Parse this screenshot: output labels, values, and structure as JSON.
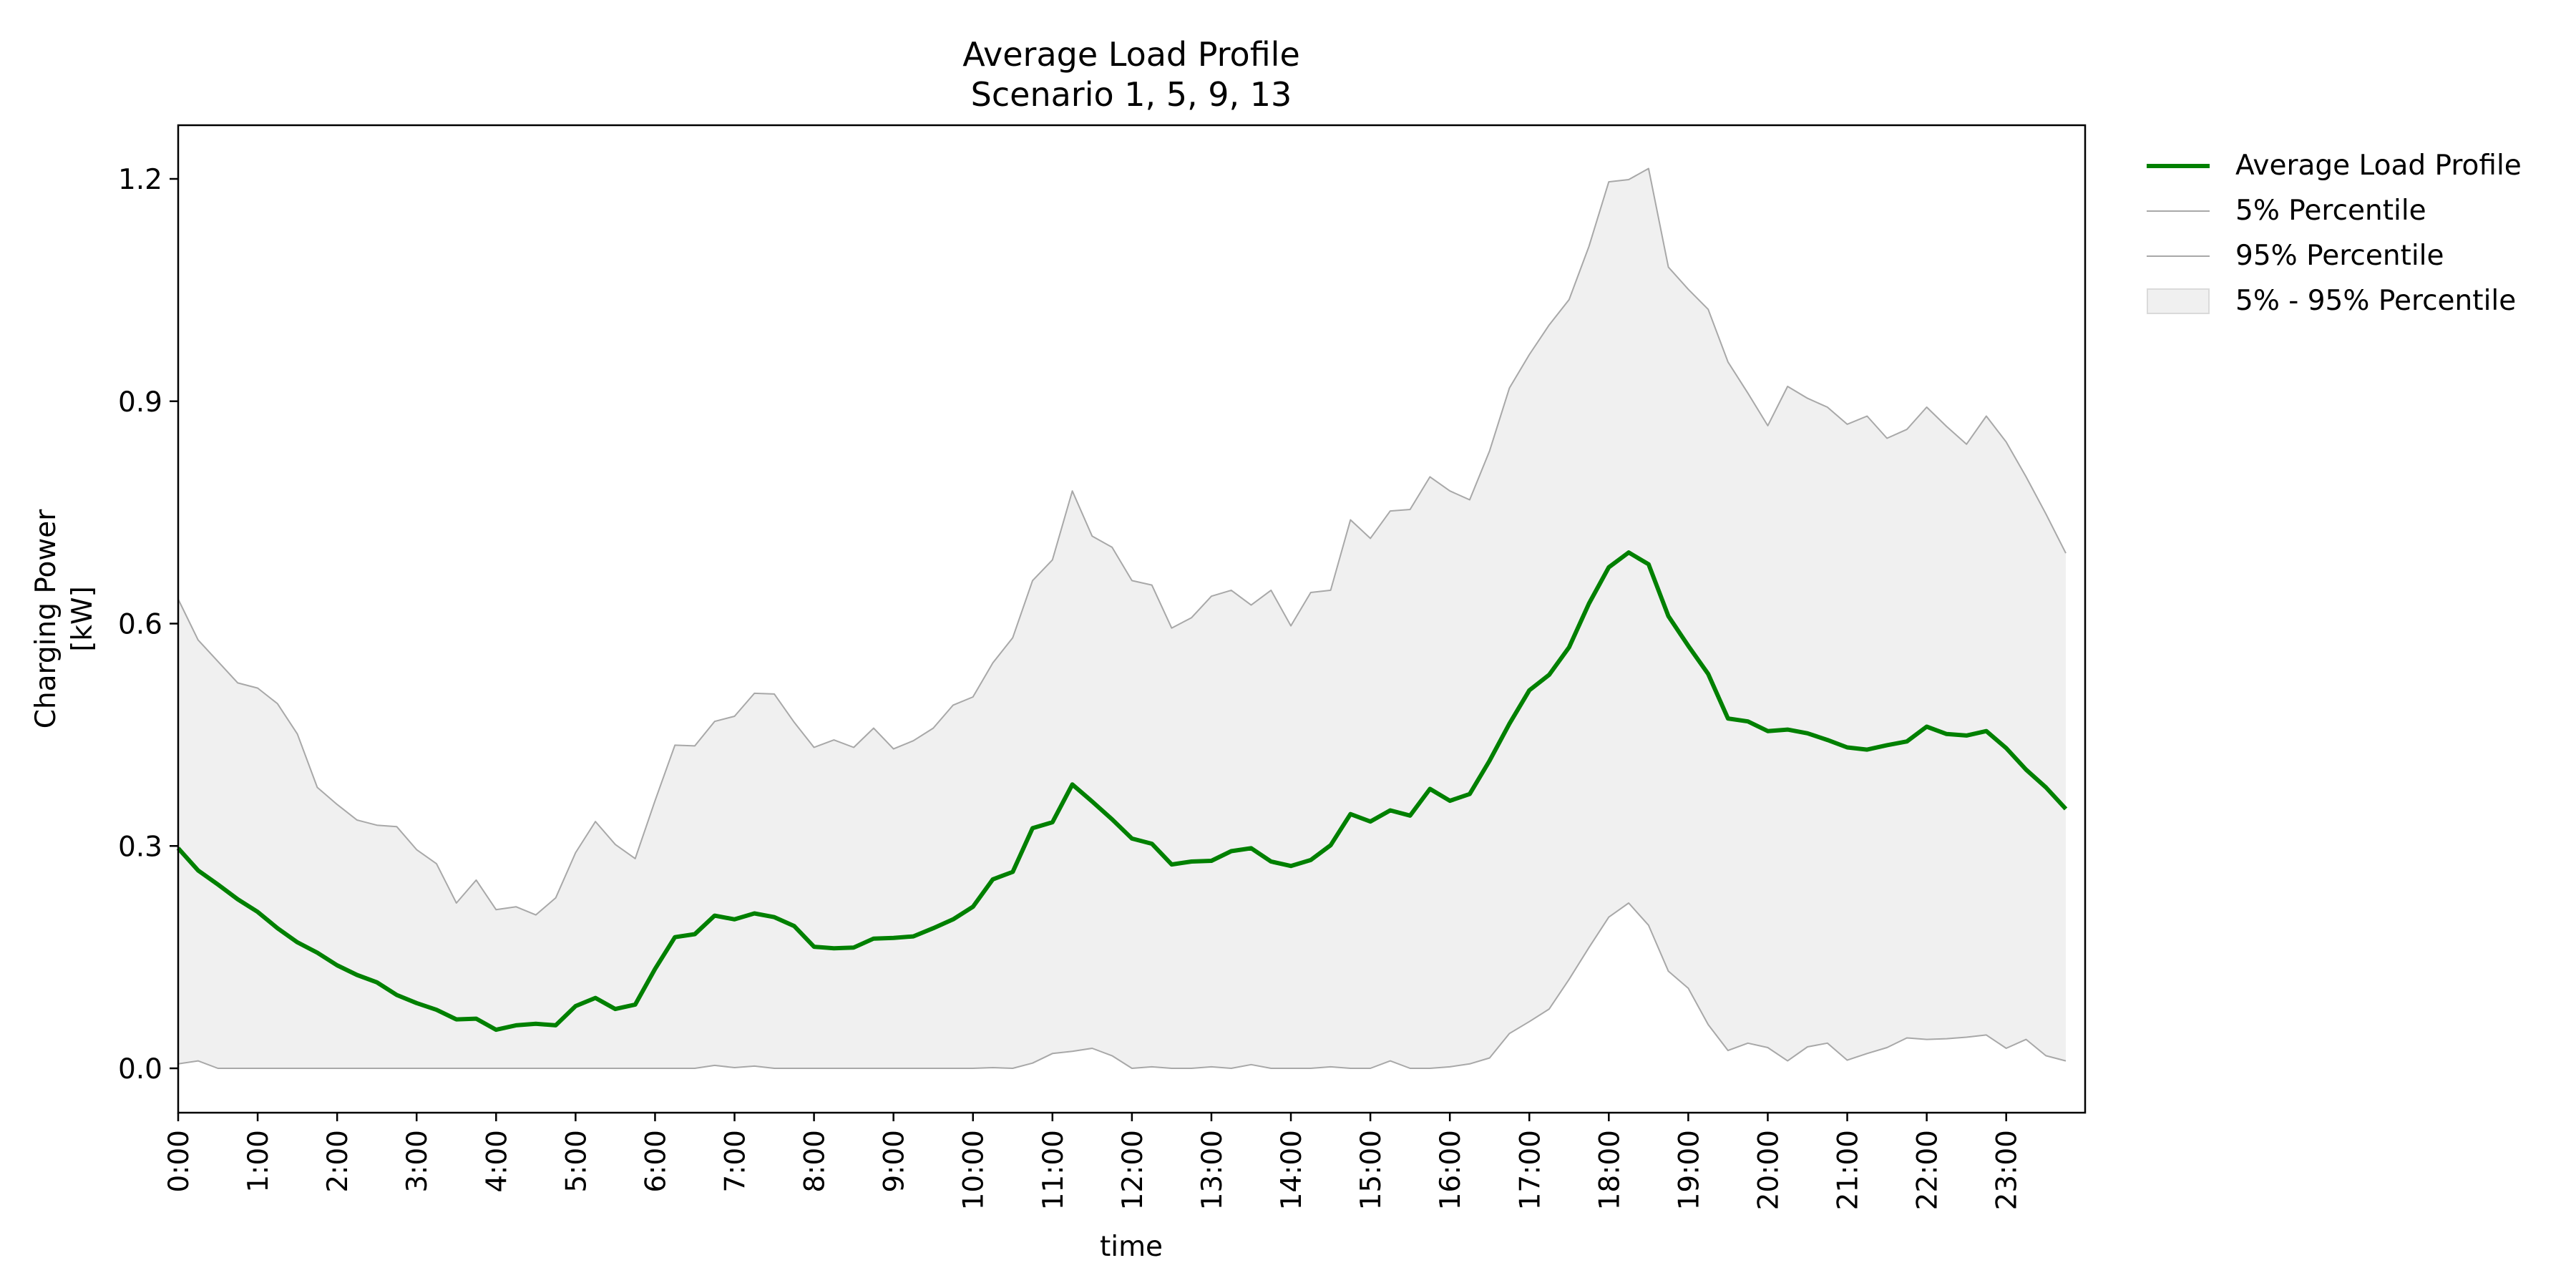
{
  "chart_data": {
    "type": "line",
    "title": "Average Load Profile",
    "subtitle": "Scenario 1, 5, 9, 13",
    "xlabel": "time",
    "ylabel": "Charging Power",
    "ylabel_unit": "[kW]",
    "ylim": [
      -0.06,
      1.27
    ],
    "yticks": [
      0.0,
      0.3,
      0.6,
      0.9,
      1.2
    ],
    "ytick_labels": [
      "0.0",
      "0.3",
      "0.6",
      "0.9",
      "1.2"
    ],
    "xlim": [
      0,
      23.75
    ],
    "xticks": [
      0,
      1,
      2,
      3,
      4,
      5,
      6,
      7,
      8,
      9,
      10,
      11,
      12,
      13,
      14,
      15,
      16,
      17,
      18,
      19,
      20,
      21,
      22,
      23
    ],
    "xtick_labels": [
      "0:00",
      "1:00",
      "2:00",
      "3:00",
      "4:00",
      "5:00",
      "6:00",
      "7:00",
      "8:00",
      "9:00",
      "10:00",
      "11:00",
      "12:00",
      "13:00",
      "14:00",
      "15:00",
      "16:00",
      "17:00",
      "18:00",
      "19:00",
      "20:00",
      "21:00",
      "22:00",
      "23:00"
    ],
    "grid": false,
    "legend_position": "outside-top-right",
    "x_interval_hours": 0.25,
    "x_start": "0:00",
    "series": [
      {
        "name": "Average Load Profile",
        "color": "#008000",
        "values": [
          0.297,
          0.267,
          0.248,
          0.228,
          0.211,
          0.189,
          0.17,
          0.156,
          0.139,
          0.126,
          0.116,
          0.099,
          0.088,
          0.079,
          0.066,
          0.067,
          0.052,
          0.058,
          0.06,
          0.058,
          0.084,
          0.095,
          0.08,
          0.086,
          0.134,
          0.177,
          0.181,
          0.206,
          0.201,
          0.209,
          0.204,
          0.192,
          0.164,
          0.162,
          0.163,
          0.175,
          0.176,
          0.178,
          0.189,
          0.201,
          0.218,
          0.255,
          0.265,
          0.324,
          0.332,
          0.383,
          0.36,
          0.336,
          0.31,
          0.303,
          0.275,
          0.279,
          0.28,
          0.293,
          0.297,
          0.279,
          0.273,
          0.281,
          0.301,
          0.343,
          0.333,
          0.348,
          0.341,
          0.377,
          0.361,
          0.37,
          0.415,
          0.465,
          0.51,
          0.531,
          0.568,
          0.627,
          0.676,
          0.696,
          0.68,
          0.61,
          0.57,
          0.532,
          0.472,
          0.468,
          0.455,
          0.457,
          0.452,
          0.443,
          0.433,
          0.43,
          0.436,
          0.441,
          0.461,
          0.451,
          0.449,
          0.455,
          0.432,
          0.403,
          0.379,
          0.35
        ]
      },
      {
        "name": "5% Percentile",
        "color": "#a8a8a8",
        "values": [
          0.006,
          0.01,
          0.0,
          0.0,
          0.0,
          0.0,
          0.0,
          0.0,
          0.0,
          0.0,
          0.0,
          0.0,
          0.0,
          0.0,
          0.0,
          0.0,
          0.0,
          0.0,
          0.0,
          0.0,
          0.0,
          0.0,
          0.0,
          0.0,
          0.0,
          0.0,
          0.0,
          0.004,
          0.001,
          0.003,
          0.0,
          0.0,
          0.0,
          0.0,
          0.0,
          0.0,
          0.0,
          0.0,
          0.0,
          0.0,
          0.0,
          0.001,
          0.0,
          0.007,
          0.02,
          0.023,
          0.027,
          0.017,
          0.0,
          0.002,
          0.0,
          0.0,
          0.002,
          0.0,
          0.005,
          0.0,
          0.0,
          0.0,
          0.002,
          0.0,
          0.0,
          0.01,
          0.0,
          0.0,
          0.002,
          0.006,
          0.014,
          0.047,
          0.063,
          0.08,
          0.12,
          0.163,
          0.204,
          0.223,
          0.193,
          0.131,
          0.108,
          0.059,
          0.024,
          0.034,
          0.028,
          0.01,
          0.029,
          0.034,
          0.011,
          0.02,
          0.028,
          0.041,
          0.039,
          0.04,
          0.042,
          0.045,
          0.027,
          0.039,
          0.017,
          0.01
        ]
      },
      {
        "name": "95% Percentile",
        "color": "#a8a8a8",
        "values": [
          0.633,
          0.578,
          0.549,
          0.52,
          0.513,
          0.492,
          0.451,
          0.379,
          0.356,
          0.335,
          0.328,
          0.326,
          0.295,
          0.276,
          0.223,
          0.254,
          0.214,
          0.218,
          0.207,
          0.23,
          0.291,
          0.333,
          0.302,
          0.283,
          0.361,
          0.436,
          0.435,
          0.468,
          0.475,
          0.506,
          0.505,
          0.467,
          0.433,
          0.443,
          0.433,
          0.459,
          0.431,
          0.442,
          0.459,
          0.49,
          0.501,
          0.547,
          0.581,
          0.658,
          0.686,
          0.779,
          0.718,
          0.703,
          0.658,
          0.652,
          0.594,
          0.608,
          0.637,
          0.645,
          0.625,
          0.645,
          0.597,
          0.642,
          0.645,
          0.74,
          0.715,
          0.752,
          0.754,
          0.798,
          0.779,
          0.767,
          0.833,
          0.918,
          0.963,
          1.003,
          1.037,
          1.109,
          1.196,
          1.199,
          1.214,
          1.081,
          1.051,
          1.024,
          0.953,
          0.911,
          0.867,
          0.92,
          0.904,
          0.892,
          0.869,
          0.88,
          0.85,
          0.862,
          0.892,
          0.866,
          0.842,
          0.88,
          0.845,
          0.798,
          0.748,
          0.695
        ]
      }
    ],
    "band": {
      "name": "5% - 95% Percentile",
      "color": "#f0f0f0",
      "between": [
        "5% Percentile",
        "95% Percentile"
      ]
    }
  },
  "legend": {
    "avg_label": "Average Load Profile",
    "p5_label": "5% Percentile",
    "p95_label": "95% Percentile",
    "band_label": "5% - 95% Percentile"
  }
}
